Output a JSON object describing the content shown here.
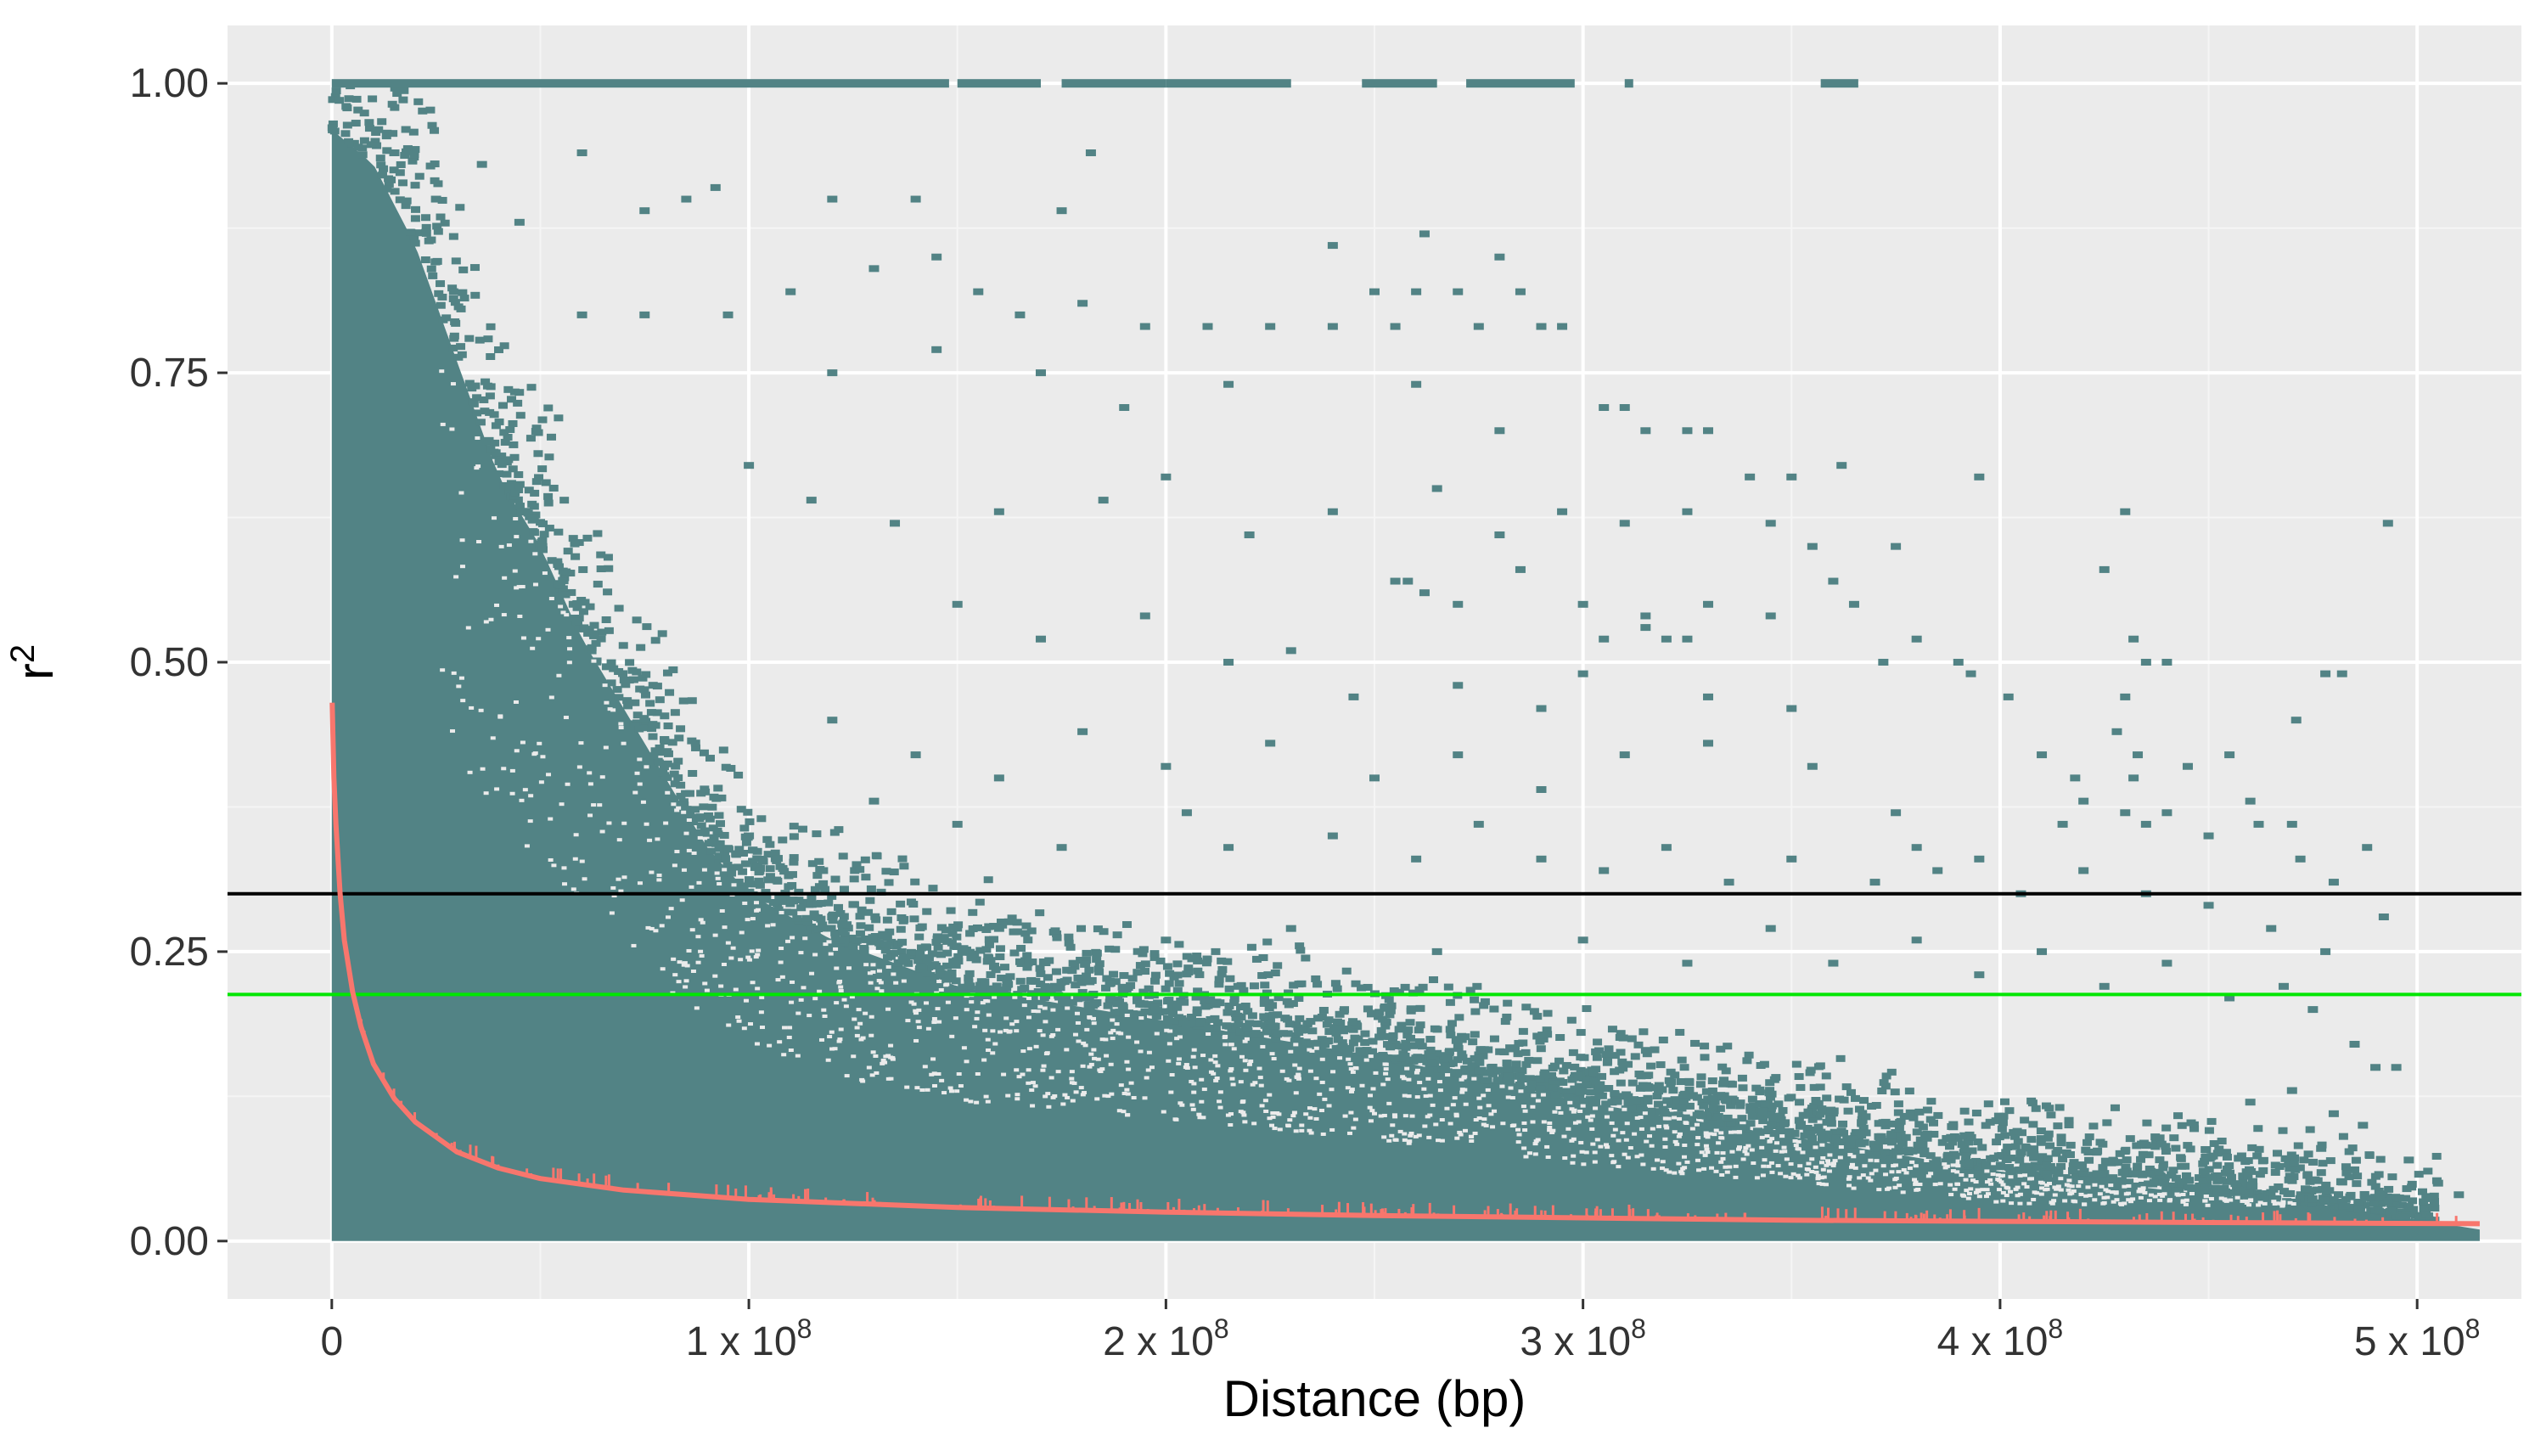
{
  "chart_data": {
    "type": "scatter",
    "title": "",
    "xlabel": "Distance (bp)",
    "ylabel": "r",
    "ylabel_superscript": "2",
    "xlim": [
      -25000000,
      525000000
    ],
    "ylim": [
      -0.05,
      1.05
    ],
    "grid": true,
    "legend": "none",
    "colors": {
      "panel_background": "#EBEBEB",
      "grid_major": "#FFFFFF",
      "grid_minor": "#F5F5F5",
      "points": "#528385",
      "decay_curve": "#F8766D",
      "threshold_black": "#000000",
      "threshold_green": "#00E600"
    },
    "x_ticks": [
      {
        "value": 0,
        "label": "0"
      },
      {
        "value": 100000000,
        "label": "1 x 10",
        "exp": "8"
      },
      {
        "value": 200000000,
        "label": "2 x 10",
        "exp": "8"
      },
      {
        "value": 300000000,
        "label": "3 x 10",
        "exp": "8"
      },
      {
        "value": 400000000,
        "label": "4 x 10",
        "exp": "8"
      },
      {
        "value": 500000000,
        "label": "5 x 10",
        "exp": "8"
      }
    ],
    "y_ticks": [
      {
        "value": 0.0,
        "label": "0.00"
      },
      {
        "value": 0.25,
        "label": "0.25"
      },
      {
        "value": 0.5,
        "label": "0.50"
      },
      {
        "value": 0.75,
        "label": "0.75"
      },
      {
        "value": 1.0,
        "label": "1.00"
      }
    ],
    "hlines": [
      {
        "name": "threshold",
        "y": 0.3,
        "color": "#000000"
      },
      {
        "name": "background",
        "y": 0.213,
        "color": "#00E600"
      }
    ],
    "dense_region": {
      "x_range": [
        0,
        515000000
      ],
      "y_max_at_zero": 0.96,
      "upper_envelope": [
        {
          "x": 0,
          "y": 0.96
        },
        {
          "x": 10000000,
          "y": 0.93
        },
        {
          "x": 20000000,
          "y": 0.86
        },
        {
          "x": 30000000,
          "y": 0.76
        },
        {
          "x": 40000000,
          "y": 0.66
        },
        {
          "x": 50000000,
          "y": 0.6
        },
        {
          "x": 60000000,
          "y": 0.52
        },
        {
          "x": 70000000,
          "y": 0.46
        },
        {
          "x": 80000000,
          "y": 0.4
        },
        {
          "x": 90000000,
          "y": 0.34
        },
        {
          "x": 100000000,
          "y": 0.3
        },
        {
          "x": 120000000,
          "y": 0.26
        },
        {
          "x": 150000000,
          "y": 0.22
        },
        {
          "x": 200000000,
          "y": 0.19
        },
        {
          "x": 250000000,
          "y": 0.16
        },
        {
          "x": 300000000,
          "y": 0.12
        },
        {
          "x": 350000000,
          "y": 0.09
        },
        {
          "x": 400000000,
          "y": 0.06
        },
        {
          "x": 450000000,
          "y": 0.04
        },
        {
          "x": 480000000,
          "y": 0.03
        },
        {
          "x": 515000000,
          "y": 0.01
        }
      ]
    },
    "r2_one_segments": [
      [
        0,
        148000000
      ],
      [
        150000000,
        170000000
      ],
      [
        175000000,
        200000000
      ],
      [
        200000000,
        230000000
      ],
      [
        247000000,
        265000000
      ],
      [
        272000000,
        298000000
      ],
      [
        310000000,
        312000000
      ],
      [
        357000000,
        366000000
      ]
    ],
    "decay_curve": [
      {
        "x": 100000,
        "y": 0.465
      },
      {
        "x": 500000,
        "y": 0.4
      },
      {
        "x": 1000000,
        "y": 0.36
      },
      {
        "x": 2000000,
        "y": 0.3
      },
      {
        "x": 3000000,
        "y": 0.26
      },
      {
        "x": 5000000,
        "y": 0.215
      },
      {
        "x": 7000000,
        "y": 0.185
      },
      {
        "x": 10000000,
        "y": 0.153
      },
      {
        "x": 15000000,
        "y": 0.123
      },
      {
        "x": 20000000,
        "y": 0.103
      },
      {
        "x": 30000000,
        "y": 0.077
      },
      {
        "x": 40000000,
        "y": 0.063
      },
      {
        "x": 50000000,
        "y": 0.054
      },
      {
        "x": 70000000,
        "y": 0.044
      },
      {
        "x": 100000000,
        "y": 0.036
      },
      {
        "x": 150000000,
        "y": 0.029
      },
      {
        "x": 200000000,
        "y": 0.025
      },
      {
        "x": 250000000,
        "y": 0.022
      },
      {
        "x": 300000000,
        "y": 0.02
      },
      {
        "x": 350000000,
        "y": 0.018
      },
      {
        "x": 400000000,
        "y": 0.017
      },
      {
        "x": 450000000,
        "y": 0.016
      },
      {
        "x": 515000000,
        "y": 0.015
      }
    ],
    "sparse_points": [
      [
        15000000,
        0.94
      ],
      [
        25000000,
        0.9
      ],
      [
        36000000,
        0.93
      ],
      [
        45000000,
        0.88
      ],
      [
        60000000,
        0.94
      ],
      [
        75000000,
        0.89
      ],
      [
        85000000,
        0.9
      ],
      [
        92000000,
        0.91
      ],
      [
        120000000,
        0.9
      ],
      [
        140000000,
        0.9
      ],
      [
        175000000,
        0.89
      ],
      [
        182000000,
        0.94
      ],
      [
        145000000,
        0.85
      ],
      [
        240000000,
        0.86
      ],
      [
        262000000,
        0.87
      ],
      [
        280000000,
        0.85
      ],
      [
        60000000,
        0.8
      ],
      [
        75000000,
        0.8
      ],
      [
        95000000,
        0.8
      ],
      [
        110000000,
        0.82
      ],
      [
        130000000,
        0.84
      ],
      [
        155000000,
        0.82
      ],
      [
        165000000,
        0.8
      ],
      [
        180000000,
        0.81
      ],
      [
        195000000,
        0.79
      ],
      [
        210000000,
        0.79
      ],
      [
        225000000,
        0.79
      ],
      [
        240000000,
        0.79
      ],
      [
        250000000,
        0.82
      ],
      [
        260000000,
        0.82
      ],
      [
        270000000,
        0.82
      ],
      [
        285000000,
        0.82
      ],
      [
        255000000,
        0.79
      ],
      [
        275000000,
        0.79
      ],
      [
        290000000,
        0.79
      ],
      [
        295000000,
        0.79
      ],
      [
        120000000,
        0.75
      ],
      [
        145000000,
        0.77
      ],
      [
        170000000,
        0.75
      ],
      [
        190000000,
        0.72
      ],
      [
        215000000,
        0.74
      ],
      [
        260000000,
        0.74
      ],
      [
        280000000,
        0.7
      ],
      [
        305000000,
        0.72
      ],
      [
        310000000,
        0.72
      ],
      [
        315000000,
        0.7
      ],
      [
        325000000,
        0.7
      ],
      [
        330000000,
        0.7
      ],
      [
        340000000,
        0.66
      ],
      [
        350000000,
        0.66
      ],
      [
        362000000,
        0.67
      ],
      [
        395000000,
        0.66
      ],
      [
        100000000,
        0.67
      ],
      [
        115000000,
        0.64
      ],
      [
        135000000,
        0.62
      ],
      [
        160000000,
        0.63
      ],
      [
        185000000,
        0.64
      ],
      [
        200000000,
        0.66
      ],
      [
        220000000,
        0.61
      ],
      [
        240000000,
        0.63
      ],
      [
        265000000,
        0.65
      ],
      [
        280000000,
        0.61
      ],
      [
        295000000,
        0.63
      ],
      [
        310000000,
        0.62
      ],
      [
        325000000,
        0.63
      ],
      [
        345000000,
        0.62
      ],
      [
        355000000,
        0.6
      ],
      [
        375000000,
        0.6
      ],
      [
        430000000,
        0.63
      ],
      [
        493000000,
        0.62
      ],
      [
        425000000,
        0.58
      ],
      [
        255000000,
        0.57
      ],
      [
        258000000,
        0.57
      ],
      [
        262000000,
        0.56
      ],
      [
        270000000,
        0.55
      ],
      [
        285000000,
        0.58
      ],
      [
        300000000,
        0.55
      ],
      [
        315000000,
        0.54
      ],
      [
        330000000,
        0.55
      ],
      [
        345000000,
        0.54
      ],
      [
        360000000,
        0.57
      ],
      [
        365000000,
        0.55
      ],
      [
        380000000,
        0.52
      ],
      [
        315000000,
        0.53
      ],
      [
        320000000,
        0.52
      ],
      [
        325000000,
        0.52
      ],
      [
        305000000,
        0.52
      ],
      [
        150000000,
        0.55
      ],
      [
        170000000,
        0.52
      ],
      [
        195000000,
        0.54
      ],
      [
        215000000,
        0.5
      ],
      [
        230000000,
        0.51
      ],
      [
        245000000,
        0.47
      ],
      [
        270000000,
        0.48
      ],
      [
        290000000,
        0.46
      ],
      [
        300000000,
        0.49
      ],
      [
        330000000,
        0.47
      ],
      [
        350000000,
        0.46
      ],
      [
        372000000,
        0.5
      ],
      [
        390000000,
        0.5
      ],
      [
        393000000,
        0.49
      ],
      [
        402000000,
        0.47
      ],
      [
        432000000,
        0.52
      ],
      [
        435000000,
        0.5
      ],
      [
        430000000,
        0.47
      ],
      [
        440000000,
        0.5
      ],
      [
        478000000,
        0.49
      ],
      [
        482000000,
        0.49
      ],
      [
        471000000,
        0.45
      ],
      [
        455000000,
        0.42
      ],
      [
        120000000,
        0.45
      ],
      [
        140000000,
        0.42
      ],
      [
        160000000,
        0.4
      ],
      [
        180000000,
        0.44
      ],
      [
        200000000,
        0.41
      ],
      [
        225000000,
        0.43
      ],
      [
        250000000,
        0.4
      ],
      [
        270000000,
        0.42
      ],
      [
        290000000,
        0.39
      ],
      [
        310000000,
        0.42
      ],
      [
        330000000,
        0.43
      ],
      [
        355000000,
        0.41
      ],
      [
        375000000,
        0.37
      ],
      [
        410000000,
        0.42
      ],
      [
        418000000,
        0.4
      ],
      [
        420000000,
        0.38
      ],
      [
        415000000,
        0.36
      ],
      [
        428000000,
        0.44
      ],
      [
        433000000,
        0.42
      ],
      [
        432000000,
        0.4
      ],
      [
        430000000,
        0.37
      ],
      [
        435000000,
        0.36
      ],
      [
        440000000,
        0.37
      ],
      [
        445000000,
        0.41
      ],
      [
        450000000,
        0.35
      ],
      [
        460000000,
        0.38
      ],
      [
        462000000,
        0.36
      ],
      [
        470000000,
        0.36
      ],
      [
        472000000,
        0.33
      ],
      [
        480000000,
        0.31
      ],
      [
        488000000,
        0.34
      ],
      [
        492000000,
        0.28
      ],
      [
        100000000,
        0.35
      ],
      [
        130000000,
        0.38
      ],
      [
        150000000,
        0.36
      ],
      [
        175000000,
        0.34
      ],
      [
        205000000,
        0.37
      ],
      [
        215000000,
        0.34
      ],
      [
        240000000,
        0.35
      ],
      [
        260000000,
        0.33
      ],
      [
        275000000,
        0.36
      ],
      [
        290000000,
        0.33
      ],
      [
        305000000,
        0.32
      ],
      [
        320000000,
        0.34
      ],
      [
        335000000,
        0.31
      ],
      [
        350000000,
        0.33
      ],
      [
        370000000,
        0.31
      ],
      [
        380000000,
        0.34
      ],
      [
        385000000,
        0.32
      ],
      [
        395000000,
        0.33
      ],
      [
        405000000,
        0.3
      ],
      [
        420000000,
        0.32
      ],
      [
        435000000,
        0.3
      ],
      [
        450000000,
        0.29
      ],
      [
        465000000,
        0.27
      ],
      [
        478000000,
        0.25
      ],
      [
        120000000,
        0.28
      ],
      [
        160000000,
        0.27
      ],
      [
        200000000,
        0.26
      ],
      [
        230000000,
        0.27
      ],
      [
        265000000,
        0.25
      ],
      [
        300000000,
        0.26
      ],
      [
        325000000,
        0.24
      ],
      [
        345000000,
        0.27
      ],
      [
        360000000,
        0.24
      ],
      [
        380000000,
        0.26
      ],
      [
        395000000,
        0.23
      ],
      [
        410000000,
        0.25
      ],
      [
        425000000,
        0.22
      ],
      [
        440000000,
        0.24
      ],
      [
        455000000,
        0.21
      ],
      [
        468000000,
        0.22
      ],
      [
        475000000,
        0.2
      ],
      [
        485000000,
        0.17
      ],
      [
        490000000,
        0.15
      ],
      [
        495000000,
        0.15
      ],
      [
        470000000,
        0.13
      ],
      [
        480000000,
        0.11
      ],
      [
        460000000,
        0.12
      ],
      [
        498000000,
        0.07
      ],
      [
        505000000,
        0.05
      ],
      [
        510000000,
        0.04
      ],
      [
        487000000,
        0.1
      ],
      [
        477000000,
        0.08
      ]
    ]
  }
}
